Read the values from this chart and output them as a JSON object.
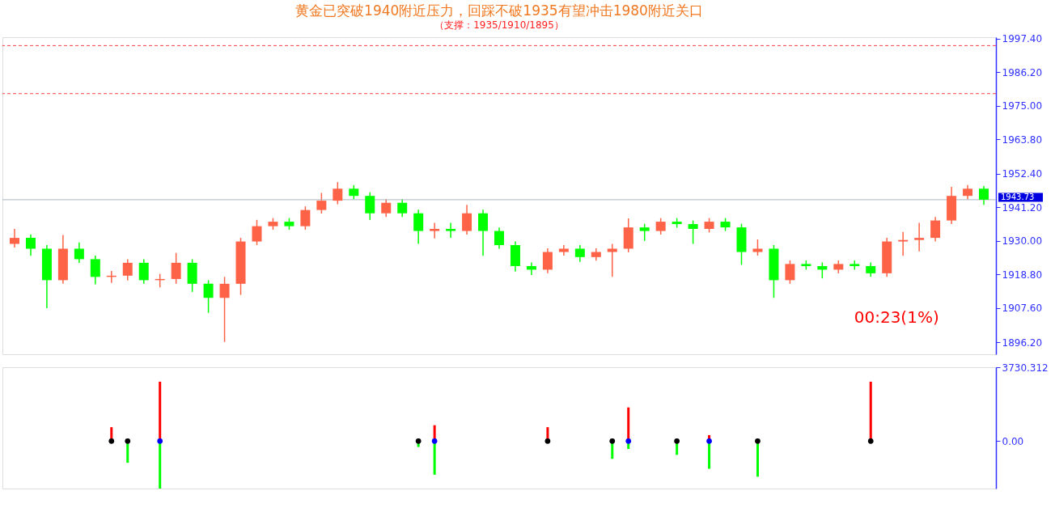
{
  "chart_data": [
    {
      "type": "candlestick",
      "title": "黄金已突破1940附近压力，回踩不破1935有望冲击1980附近关口",
      "subtitle": "（支撑：1935/1910/1895）",
      "categories": [
        null,
        null,
        null,
        null,
        null,
        null,
        null,
        null,
        null,
        null,
        null,
        null,
        null,
        null,
        null,
        null,
        null,
        null,
        null,
        null,
        null,
        null,
        null,
        null,
        null,
        null,
        null,
        null,
        null,
        null,
        null,
        null,
        null,
        null,
        null,
        null,
        null,
        null,
        null,
        null,
        null,
        null,
        null,
        null,
        null,
        null,
        null,
        null,
        null,
        null,
        null,
        null,
        null,
        null,
        null,
        null,
        null,
        null,
        null,
        null,
        null
      ],
      "ohlc": [
        [
          1929.0,
          1934.0,
          1927.8,
          1931.0
        ],
        [
          1931.0,
          1932.2,
          1925.0,
          1927.4
        ],
        [
          1927.4,
          1928.6,
          1907.6,
          1916.9
        ],
        [
          1916.9,
          1932.0,
          1915.7,
          1927.4
        ],
        [
          1927.4,
          1929.5,
          1922.7,
          1923.9
        ],
        [
          1923.9,
          1925.1,
          1915.5,
          1918.0
        ],
        [
          1918.0,
          1920.0,
          1916.0,
          1918.4
        ],
        [
          1918.4,
          1923.9,
          1916.8,
          1922.7
        ],
        [
          1922.7,
          1923.9,
          1915.7,
          1916.9
        ],
        [
          1916.9,
          1919.0,
          1914.5,
          1917.3
        ],
        [
          1917.3,
          1926.0,
          1915.7,
          1922.7
        ],
        [
          1922.7,
          1923.9,
          1913.0,
          1915.7
        ],
        [
          1915.7,
          1916.9,
          1906.0,
          1911.0
        ],
        [
          1911.0,
          1918.0,
          1896.3,
          1915.7
        ],
        [
          1915.7,
          1931.0,
          1912.0,
          1929.8
        ],
        [
          1929.8,
          1937.0,
          1928.6,
          1934.9
        ],
        [
          1934.9,
          1937.6,
          1933.7,
          1936.4
        ],
        [
          1936.4,
          1937.6,
          1933.7,
          1934.9
        ],
        [
          1934.9,
          1941.5,
          1933.7,
          1940.3
        ],
        [
          1940.3,
          1946.0,
          1939.1,
          1943.4
        ],
        [
          1943.4,
          1949.6,
          1942.2,
          1947.4
        ],
        [
          1947.4,
          1948.6,
          1943.8,
          1945.0
        ],
        [
          1945.0,
          1946.2,
          1937.0,
          1939.2
        ],
        [
          1939.2,
          1943.9,
          1938.0,
          1942.7
        ],
        [
          1942.7,
          1943.9,
          1938.0,
          1939.2
        ],
        [
          1939.2,
          1940.4,
          1929.0,
          1933.3
        ],
        [
          1933.3,
          1936.0,
          1930.8,
          1934.0
        ],
        [
          1934.0,
          1936.0,
          1931.0,
          1933.3
        ],
        [
          1933.3,
          1942.0,
          1932.1,
          1939.2
        ],
        [
          1939.2,
          1940.4,
          1925.0,
          1933.3
        ],
        [
          1933.3,
          1934.5,
          1927.4,
          1928.6
        ],
        [
          1928.6,
          1929.8,
          1919.8,
          1921.6
        ],
        [
          1921.6,
          1922.8,
          1918.6,
          1920.4
        ],
        [
          1920.4,
          1927.5,
          1919.2,
          1926.3
        ],
        [
          1926.3,
          1928.6,
          1925.1,
          1927.4
        ],
        [
          1927.4,
          1928.6,
          1923.0,
          1924.6
        ],
        [
          1924.6,
          1927.5,
          1923.4,
          1926.3
        ],
        [
          1926.3,
          1929.0,
          1918.0,
          1927.4
        ],
        [
          1927.4,
          1937.5,
          1926.2,
          1934.5
        ],
        [
          1934.5,
          1935.7,
          1930.0,
          1933.3
        ],
        [
          1933.3,
          1937.6,
          1932.1,
          1936.4
        ],
        [
          1936.4,
          1937.6,
          1934.4,
          1935.6
        ],
        [
          1935.6,
          1936.8,
          1929.0,
          1934.0
        ],
        [
          1934.0,
          1937.6,
          1932.8,
          1936.4
        ],
        [
          1936.4,
          1937.6,
          1933.3,
          1934.5
        ],
        [
          1934.5,
          1935.7,
          1922.0,
          1926.3
        ],
        [
          1926.3,
          1930.5,
          1925.1,
          1927.4
        ],
        [
          1927.4,
          1928.6,
          1911.0,
          1916.9
        ],
        [
          1916.9,
          1923.5,
          1915.7,
          1922.3
        ],
        [
          1922.3,
          1923.5,
          1920.4,
          1921.6
        ],
        [
          1921.6,
          1922.8,
          1917.5,
          1920.4
        ],
        [
          1920.4,
          1923.5,
          1919.2,
          1922.3
        ],
        [
          1922.3,
          1923.5,
          1920.4,
          1921.6
        ],
        [
          1921.6,
          1922.8,
          1918.0,
          1919.2
        ],
        [
          1919.2,
          1931.0,
          1918.0,
          1929.8
        ],
        [
          1929.8,
          1933.0,
          1925.0,
          1930.3
        ],
        [
          1930.3,
          1936.0,
          1926.5,
          1931.0
        ],
        [
          1931.0,
          1938.0,
          1929.8,
          1936.8
        ],
        [
          1936.8,
          1948.0,
          1935.6,
          1945.0
        ],
        [
          1945.0,
          1948.6,
          1943.8,
          1947.4
        ],
        [
          1947.4,
          1948.3,
          1942.0,
          1943.73
        ]
      ],
      "colors": [
        "#ff6347",
        "#00ff00",
        "#00ff00",
        "#ff6347",
        "#00ff00",
        "#00ff00",
        "#ff6347",
        "#ff6347",
        "#00ff00",
        "#ff6347",
        "#ff6347",
        "#00ff00",
        "#00ff00",
        "#ff6347",
        "#ff6347",
        "#ff6347",
        "#ff6347",
        "#00ff00",
        "#ff6347",
        "#ff6347",
        "#ff6347",
        "#00ff00",
        "#00ff00",
        "#ff6347",
        "#00ff00",
        "#00ff00",
        "#ff6347",
        "#00ff00",
        "#ff6347",
        "#00ff00",
        "#00ff00",
        "#00ff00",
        "#00ff00",
        "#ff6347",
        "#ff6347",
        "#00ff00",
        "#ff6347",
        "#ff6347",
        "#ff6347",
        "#00ff00",
        "#ff6347",
        "#00ff00",
        "#00ff00",
        "#ff6347",
        "#00ff00",
        "#00ff00",
        "#ff6347",
        "#00ff00",
        "#ff6347",
        "#00ff00",
        "#00ff00",
        "#ff6347",
        "#00ff00",
        "#00ff00",
        "#ff6347",
        "#ff6347",
        "#ff6347",
        "#ff6347",
        "#ff6347",
        "#ff6347",
        "#00ff00"
      ],
      "ylim": [
        1892.2,
        1997.9
      ],
      "yticks": [
        {
          "value": 1896.2,
          "label": "1896.20"
        },
        {
          "value": 1907.6,
          "label": "1907.60"
        },
        {
          "value": 1918.8,
          "label": "1918.80"
        },
        {
          "value": 1930,
          "label": "1930.00"
        },
        {
          "value": 1941.2,
          "label": "1941.20"
        },
        {
          "value": 1952.4,
          "label": "1952.40"
        },
        {
          "value": 1963.8,
          "label": "1963.80"
        },
        {
          "value": 1975,
          "label": "1975.00"
        },
        {
          "value": 1986.2,
          "label": "1986.20"
        },
        {
          "value": 1997.4,
          "label": "1997.40"
        }
      ],
      "ref_lines": [
        {
          "axis": "y",
          "value": 1995.1,
          "label": null,
          "color": "#ff4040",
          "line_style": "dashed"
        },
        {
          "axis": "y",
          "value": 1979.1,
          "label": null,
          "color": "#ff4040",
          "line_style": "dashed"
        },
        {
          "axis": "y",
          "value": 1943.73,
          "label": "1943.73",
          "color": "#a8b4c0",
          "line_style": "solid"
        }
      ],
      "annotations": [
        "00:23(1%)"
      ],
      "tick_labels": "y",
      "grid": false
    },
    {
      "type": "bar",
      "categories": [
        null,
        null,
        null,
        null,
        null,
        null,
        null,
        null,
        null,
        null,
        null,
        null,
        null,
        null,
        null,
        null,
        null,
        null,
        null,
        null,
        null,
        null,
        null,
        null,
        null,
        null,
        null,
        null,
        null,
        null,
        null,
        null,
        null,
        null,
        null,
        null,
        null,
        null,
        null,
        null,
        null,
        null,
        null,
        null,
        null,
        null,
        null,
        null,
        null,
        null,
        null,
        null,
        null,
        null,
        null,
        null,
        null,
        null,
        null,
        null,
        null
      ],
      "series": [
        {
          "color": "#ff0000",
          "values": [
            null,
            null,
            null,
            null,
            null,
            null,
            700,
            null,
            null,
            3000,
            null,
            null,
            null,
            null,
            null,
            null,
            null,
            null,
            null,
            null,
            null,
            null,
            null,
            null,
            null,
            null,
            800,
            null,
            null,
            null,
            null,
            null,
            null,
            700,
            null,
            null,
            null,
            null,
            1700,
            null,
            null,
            null,
            null,
            300,
            null,
            null,
            null,
            null,
            null,
            null,
            null,
            null,
            null,
            3000,
            null,
            null,
            null,
            null,
            null,
            null,
            null
          ]
        },
        {
          "color": "#00ff00",
          "values": [
            null,
            null,
            null,
            null,
            null,
            null,
            null,
            -1100,
            null,
            -2400,
            null,
            null,
            null,
            null,
            null,
            null,
            null,
            null,
            null,
            null,
            null,
            null,
            null,
            null,
            null,
            -300,
            -1700,
            null,
            null,
            null,
            null,
            null,
            null,
            null,
            null,
            null,
            null,
            -900,
            -400,
            null,
            null,
            -700,
            null,
            -1400,
            null,
            null,
            -1800,
            null,
            null,
            null,
            null,
            null,
            null,
            null,
            null,
            null,
            null,
            null,
            null,
            null,
            null
          ]
        },
        {
          "type": "scatter",
          "color": "#000000",
          "values": [
            null,
            null,
            null,
            null,
            null,
            null,
            0,
            0,
            null,
            null,
            null,
            null,
            null,
            null,
            null,
            null,
            null,
            null,
            null,
            null,
            null,
            null,
            null,
            null,
            null,
            0,
            null,
            null,
            null,
            null,
            null,
            null,
            null,
            0,
            null,
            null,
            null,
            0,
            null,
            null,
            null,
            0,
            null,
            null,
            null,
            null,
            0,
            null,
            null,
            null,
            null,
            null,
            null,
            0,
            null,
            null,
            null,
            null,
            null,
            null,
            null
          ]
        },
        {
          "type": "scatter",
          "color": "#0000ff",
          "values": [
            null,
            null,
            null,
            null,
            null,
            null,
            null,
            null,
            null,
            0,
            null,
            null,
            null,
            null,
            null,
            null,
            null,
            null,
            null,
            null,
            null,
            null,
            null,
            null,
            null,
            null,
            0,
            null,
            null,
            null,
            null,
            null,
            null,
            null,
            null,
            null,
            null,
            null,
            0,
            null,
            null,
            null,
            null,
            0,
            null,
            null,
            null,
            null,
            null,
            null,
            null,
            null,
            null,
            null,
            null,
            null,
            null,
            null,
            null,
            null,
            null
          ]
        }
      ],
      "ylim": [
        -2400,
        3730.312
      ],
      "yticks": [
        {
          "value": 0,
          "label": "0.00"
        },
        3730.312
      ],
      "tick_labels": "y",
      "grid": false
    }
  ]
}
